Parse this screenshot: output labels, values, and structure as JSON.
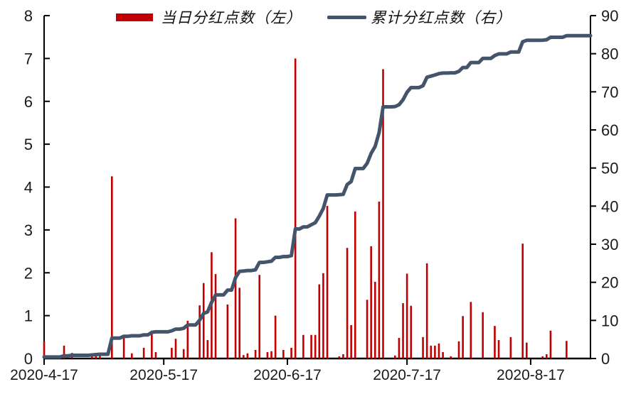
{
  "colors": {
    "bar": "#C00000",
    "line": "#44546A",
    "axis": "#000000",
    "text": "#1a1a1a",
    "background": "#ffffff"
  },
  "chart_data": {
    "type": "bar",
    "subtype": "combo_bar_line_dual_axis",
    "title": "",
    "legend": [
      {
        "label": "当日分红点数（左）",
        "kind": "bar",
        "color": "#C00000"
      },
      {
        "label": "累计分红点数（右）",
        "kind": "line",
        "color": "#44546A"
      }
    ],
    "x_axis": {
      "start_date": "2020-04-17",
      "end_date": "2020-09-01",
      "tick_dates": [
        "2020-04-17",
        "2020-05-17",
        "2020-06-17",
        "2020-07-17",
        "2020-08-17"
      ],
      "tick_labels": [
        "2020-4-17",
        "2020-5-17",
        "2020-6-17",
        "2020-7-17",
        "2020-8-17"
      ]
    },
    "y_left": {
      "min": 0,
      "max": 8,
      "step": 1,
      "series_name": "当日分红点数",
      "tick_labels": [
        0,
        1,
        2,
        3,
        4,
        5,
        6,
        7,
        8
      ]
    },
    "y_right": {
      "min": 0,
      "max": 90,
      "step": 10,
      "series_name": "累计分红点数",
      "tick_labels": [
        0,
        10,
        20,
        30,
        40,
        50,
        60,
        70,
        80,
        90
      ]
    },
    "grid": false,
    "legend_position": "top",
    "line_rule": "cumulative_sum_of_daily_bars",
    "bars": [
      [
        "2020-04-17",
        0.4
      ],
      [
        "2020-04-22",
        0.3
      ],
      [
        "2020-04-24",
        0.13
      ],
      [
        "2020-04-29",
        0.1
      ],
      [
        "2020-04-30",
        0.1
      ],
      [
        "2020-05-01",
        0.08
      ],
      [
        "2020-05-04",
        4.25
      ],
      [
        "2020-05-07",
        0.48
      ],
      [
        "2020-05-09",
        0.12
      ],
      [
        "2020-05-12",
        0.25
      ],
      [
        "2020-05-14",
        0.65
      ],
      [
        "2020-05-15",
        0.15
      ],
      [
        "2020-05-19",
        0.25
      ],
      [
        "2020-05-20",
        0.46
      ],
      [
        "2020-05-22",
        0.22
      ],
      [
        "2020-05-23",
        0.88
      ],
      [
        "2020-05-26",
        1.24
      ],
      [
        "2020-05-27",
        1.76
      ],
      [
        "2020-05-28",
        0.43
      ],
      [
        "2020-05-29",
        2.48
      ],
      [
        "2020-05-30",
        1.97
      ],
      [
        "2020-06-02",
        1.26
      ],
      [
        "2020-06-04",
        3.27
      ],
      [
        "2020-06-05",
        1.65
      ],
      [
        "2020-06-06",
        0.08
      ],
      [
        "2020-06-07",
        0.12
      ],
      [
        "2020-06-09",
        0.2
      ],
      [
        "2020-06-10",
        1.95
      ],
      [
        "2020-06-12",
        0.15
      ],
      [
        "2020-06-13",
        0.17
      ],
      [
        "2020-06-14",
        1.0
      ],
      [
        "2020-06-16",
        0.2
      ],
      [
        "2020-06-18",
        0.25
      ],
      [
        "2020-06-19",
        7.0
      ],
      [
        "2020-06-21",
        0.55
      ],
      [
        "2020-06-23",
        0.55
      ],
      [
        "2020-06-24",
        0.55
      ],
      [
        "2020-06-25",
        1.73
      ],
      [
        "2020-06-26",
        1.99
      ],
      [
        "2020-06-27",
        3.56
      ],
      [
        "2020-06-30",
        0.05
      ],
      [
        "2020-07-01",
        0.1
      ],
      [
        "2020-07-02",
        2.58
      ],
      [
        "2020-07-03",
        0.78
      ],
      [
        "2020-07-04",
        3.43
      ],
      [
        "2020-07-07",
        1.37
      ],
      [
        "2020-07-08",
        2.62
      ],
      [
        "2020-07-09",
        1.79
      ],
      [
        "2020-07-10",
        3.66
      ],
      [
        "2020-07-11",
        6.75
      ],
      [
        "2020-07-14",
        0.07
      ],
      [
        "2020-07-15",
        0.48
      ],
      [
        "2020-07-16",
        1.29
      ],
      [
        "2020-07-17",
        1.98
      ],
      [
        "2020-07-18",
        1.23
      ],
      [
        "2020-07-21",
        0.5
      ],
      [
        "2020-07-22",
        2.22
      ],
      [
        "2020-07-23",
        0.3
      ],
      [
        "2020-07-24",
        0.3
      ],
      [
        "2020-07-25",
        0.35
      ],
      [
        "2020-07-26",
        0.15
      ],
      [
        "2020-07-28",
        0.05
      ],
      [
        "2020-07-30",
        0.4
      ],
      [
        "2020-07-31",
        0.99
      ],
      [
        "2020-08-02",
        1.32
      ],
      [
        "2020-08-05",
        1.08
      ],
      [
        "2020-08-08",
        0.76
      ],
      [
        "2020-08-09",
        0.43
      ],
      [
        "2020-08-12",
        0.5
      ],
      [
        "2020-08-15",
        2.68
      ],
      [
        "2020-08-16",
        0.37
      ],
      [
        "2020-08-20",
        0.05
      ],
      [
        "2020-08-21",
        0.1
      ],
      [
        "2020-08-22",
        0.65
      ],
      [
        "2020-08-26",
        0.41
      ]
    ]
  }
}
